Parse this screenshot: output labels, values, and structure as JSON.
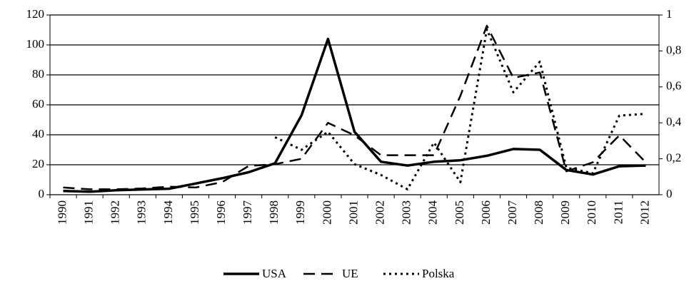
{
  "chart_data": {
    "type": "line",
    "categories": [
      "1990",
      "1991",
      "1992",
      "1993",
      "1994",
      "1995",
      "1996",
      "1997",
      "1998",
      "1999",
      "2000",
      "2001",
      "2002",
      "2003",
      "2004",
      "2005",
      "2006",
      "2007",
      "2008",
      "2009",
      "2010",
      "2011",
      "2012"
    ],
    "series": [
      {
        "name": "USA",
        "color": "#000000",
        "style": "solid",
        "values": [
          2.5,
          2,
          3,
          3.5,
          4,
          7.5,
          11,
          15,
          21,
          53,
          104,
          42,
          22,
          19.5,
          22,
          23,
          26,
          30.5,
          30,
          16.5,
          13.5,
          19,
          19.5
        ]
      },
      {
        "name": "UE",
        "color": "#000000",
        "style": "dashed",
        "axis": "y2",
        "values": [
          0.04,
          0.03,
          0.03,
          0.035,
          0.045,
          0.04,
          0.07,
          0.16,
          0.17,
          0.2,
          0.4,
          0.33,
          0.22,
          0.22,
          0.22,
          0.55,
          0.94,
          0.65,
          0.68,
          0.13,
          0.18,
          0.33,
          0.18
        ]
      },
      {
        "name": "Polska",
        "color": "#000000",
        "style": "dotted",
        "axis": "y2",
        "values": [
          null,
          null,
          null,
          null,
          null,
          null,
          null,
          null,
          0.32,
          0.25,
          0.35,
          0.17,
          0.11,
          0.03,
          0.29,
          0.07,
          0.92,
          0.57,
          0.74,
          0.15,
          0.12,
          0.44,
          0.45
        ]
      }
    ],
    "ylim": [
      0,
      120
    ],
    "yticks": [
      0,
      20,
      40,
      60,
      80,
      100,
      120
    ],
    "y2lim": [
      0,
      1
    ],
    "y2ticks": [
      0,
      {
        "value": 0.2,
        "label": "0,2"
      },
      {
        "value": 0.4,
        "label": "0,4"
      },
      {
        "value": 0.6,
        "label": "0,6"
      },
      {
        "value": 0.8,
        "label": "0,8"
      },
      1
    ],
    "grid": true,
    "legend": "bottom"
  }
}
